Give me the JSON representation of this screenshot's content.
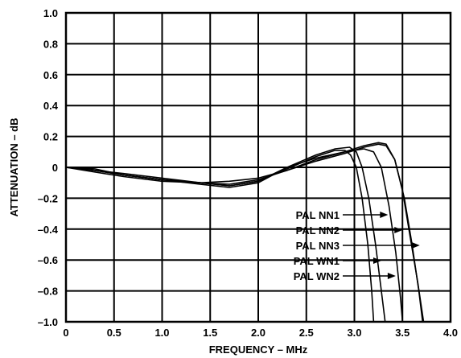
{
  "chart_data": {
    "type": "line",
    "xlabel": "FREQUENCY – MHz",
    "ylabel": "ATTENUATION – dB",
    "xlim": [
      0,
      4.0
    ],
    "ylim": [
      -1.0,
      1.0
    ],
    "grid": true,
    "x_ticks": [
      {
        "value": 0,
        "label": "0"
      },
      {
        "value": 0.5,
        "label": "0.5"
      },
      {
        "value": 1.0,
        "label": "1.0"
      },
      {
        "value": 1.5,
        "label": "1.5"
      },
      {
        "value": 2.0,
        "label": "2.0"
      },
      {
        "value": 2.5,
        "label": "2.5"
      },
      {
        "value": 3.0,
        "label": "3.0"
      },
      {
        "value": 3.5,
        "label": "3.5"
      },
      {
        "value": 4.0,
        "label": "4.0"
      }
    ],
    "y_ticks": [
      {
        "value": 1.0,
        "label": "1.0"
      },
      {
        "value": 0.8,
        "label": "0.8"
      },
      {
        "value": 0.6,
        "label": "0.6"
      },
      {
        "value": 0.4,
        "label": "0.4"
      },
      {
        "value": 0.2,
        "label": "0.2"
      },
      {
        "value": 0,
        "label": "0"
      },
      {
        "value": -0.2,
        "label": "–0.2"
      },
      {
        "value": -0.4,
        "label": "–0.4"
      },
      {
        "value": -0.6,
        "label": "–0.6"
      },
      {
        "value": -0.8,
        "label": "–0.8"
      },
      {
        "value": -1.0,
        "label": "–1.0"
      }
    ],
    "series": [
      {
        "name": "PAL NN1",
        "arrow_target": [
          3.35,
          -0.36
        ],
        "points": [
          [
            0,
            0
          ],
          [
            0.3,
            -0.01
          ],
          [
            0.6,
            -0.05
          ],
          [
            1.0,
            -0.08
          ],
          [
            1.4,
            -0.11
          ],
          [
            1.7,
            -0.13
          ],
          [
            2.0,
            -0.1
          ],
          [
            2.3,
            0.0
          ],
          [
            2.6,
            0.08
          ],
          [
            2.8,
            0.12
          ],
          [
            2.95,
            0.13
          ],
          [
            3.02,
            0.1
          ],
          [
            3.08,
            0.0
          ],
          [
            3.15,
            -0.2
          ],
          [
            3.22,
            -0.5
          ],
          [
            3.28,
            -0.8
          ],
          [
            3.32,
            -1.0
          ]
        ]
      },
      {
        "name": "PAL NN2",
        "arrow_target": [
          3.5,
          -0.46
        ],
        "points": [
          [
            0,
            0
          ],
          [
            0.3,
            -0.03
          ],
          [
            0.6,
            -0.06
          ],
          [
            1.0,
            -0.09
          ],
          [
            1.4,
            -0.1
          ],
          [
            1.7,
            -0.09
          ],
          [
            2.0,
            -0.07
          ],
          [
            2.3,
            -0.02
          ],
          [
            2.6,
            0.05
          ],
          [
            2.9,
            0.1
          ],
          [
            3.1,
            0.12
          ],
          [
            3.2,
            0.1
          ],
          [
            3.28,
            0.0
          ],
          [
            3.36,
            -0.25
          ],
          [
            3.43,
            -0.55
          ],
          [
            3.48,
            -0.85
          ],
          [
            3.5,
            -1.0
          ]
        ]
      },
      {
        "name": "PAL NN3",
        "arrow_target": [
          3.68,
          -0.56
        ],
        "points": [
          [
            0,
            0
          ],
          [
            0.3,
            -0.02
          ],
          [
            0.6,
            -0.05
          ],
          [
            1.0,
            -0.08
          ],
          [
            1.4,
            -0.1
          ],
          [
            1.7,
            -0.11
          ],
          [
            2.0,
            -0.08
          ],
          [
            2.3,
            -0.02
          ],
          [
            2.6,
            0.04
          ],
          [
            2.9,
            0.09
          ],
          [
            3.1,
            0.13
          ],
          [
            3.25,
            0.15
          ],
          [
            3.33,
            0.14
          ],
          [
            3.42,
            0.05
          ],
          [
            3.5,
            -0.15
          ],
          [
            3.58,
            -0.45
          ],
          [
            3.66,
            -0.75
          ],
          [
            3.72,
            -1.0
          ]
        ]
      },
      {
        "name": "PAL WN1",
        "arrow_target": [
          3.28,
          -0.66
        ],
        "points": [
          [
            0,
            0
          ],
          [
            0.3,
            -0.02
          ],
          [
            0.6,
            -0.04
          ],
          [
            1.0,
            -0.07
          ],
          [
            1.4,
            -0.1
          ],
          [
            1.7,
            -0.12
          ],
          [
            2.0,
            -0.09
          ],
          [
            2.3,
            -0.01
          ],
          [
            2.6,
            0.07
          ],
          [
            2.8,
            0.11
          ],
          [
            2.9,
            0.11
          ],
          [
            2.96,
            0.08
          ],
          [
            3.02,
            0.0
          ],
          [
            3.08,
            -0.2
          ],
          [
            3.14,
            -0.5
          ],
          [
            3.18,
            -0.8
          ],
          [
            3.2,
            -1.0
          ]
        ]
      },
      {
        "name": "PAL WN2",
        "arrow_target": [
          3.43,
          -0.76
        ],
        "points": [
          [
            0,
            0
          ],
          [
            0.3,
            -0.02
          ],
          [
            0.6,
            -0.05
          ],
          [
            1.0,
            -0.08
          ],
          [
            1.4,
            -0.1
          ],
          [
            1.7,
            -0.12
          ],
          [
            2.0,
            -0.09
          ],
          [
            2.3,
            0.0
          ],
          [
            2.6,
            0.06
          ],
          [
            2.9,
            0.1
          ],
          [
            3.1,
            0.14
          ],
          [
            3.25,
            0.16
          ],
          [
            3.33,
            0.15
          ],
          [
            3.42,
            0.05
          ],
          [
            3.52,
            -0.2
          ],
          [
            3.6,
            -0.5
          ],
          [
            3.67,
            -0.8
          ],
          [
            3.71,
            -1.0
          ]
        ]
      }
    ]
  }
}
